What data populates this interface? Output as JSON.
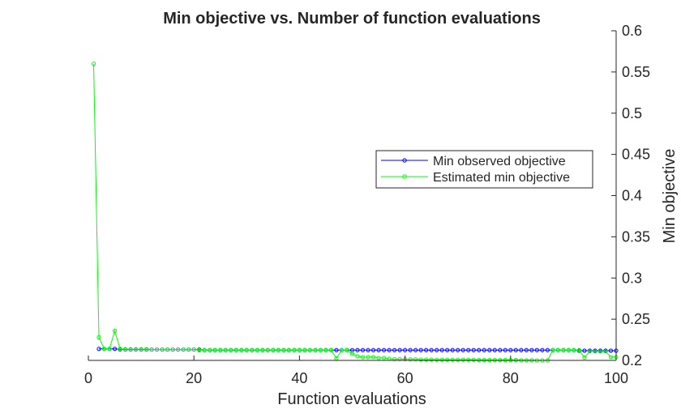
{
  "chart_data": {
    "type": "line",
    "title": "Min objective vs. Number of function evaluations",
    "xlabel": "Function evaluations",
    "ylabel": "Min objective",
    "xlim": [
      0,
      100
    ],
    "ylim": [
      0.2,
      0.6
    ],
    "xticks": [
      "0",
      "20",
      "40",
      "60",
      "80",
      "100"
    ],
    "yticks": [
      "0.2",
      "0.25",
      "0.3",
      "0.35",
      "0.4",
      "0.45",
      "0.5",
      "0.55",
      "0.6"
    ],
    "y_axis_location": "right",
    "grid": false,
    "legend_position": "center-right",
    "series": [
      {
        "name": "Min observed objective",
        "color": "#0000ff",
        "marker": "circle",
        "x": [
          2,
          3,
          4,
          5,
          6,
          7,
          8,
          9,
          10,
          11,
          12,
          13,
          14,
          15,
          16,
          17,
          18,
          19,
          20,
          21,
          22,
          23,
          24,
          25,
          26,
          27,
          28,
          29,
          30,
          31,
          32,
          33,
          34,
          35,
          36,
          37,
          38,
          39,
          40,
          41,
          42,
          43,
          44,
          45,
          46,
          47,
          48,
          49,
          50,
          51,
          52,
          53,
          54,
          55,
          56,
          57,
          58,
          59,
          60,
          61,
          62,
          63,
          64,
          65,
          66,
          67,
          68,
          69,
          70,
          71,
          72,
          73,
          74,
          75,
          76,
          77,
          78,
          79,
          80,
          81,
          82,
          83,
          84,
          85,
          86,
          87,
          88,
          89,
          90,
          91,
          92,
          93,
          94,
          95,
          96,
          97,
          98,
          99,
          100
        ],
        "y": [
          0.214,
          0.214,
          0.214,
          0.214,
          0.2134,
          0.2132,
          0.2132,
          0.2132,
          0.2132,
          0.2132,
          0.2132,
          0.2132,
          0.2132,
          0.2132,
          0.2132,
          0.2132,
          0.2132,
          0.2132,
          0.2132,
          0.2132,
          0.2125,
          0.2125,
          0.2125,
          0.2125,
          0.2125,
          0.2125,
          0.2125,
          0.2125,
          0.2125,
          0.2125,
          0.2125,
          0.2125,
          0.2125,
          0.2125,
          0.2125,
          0.2125,
          0.2125,
          0.2125,
          0.2125,
          0.2125,
          0.2125,
          0.2125,
          0.2125,
          0.2125,
          0.2125,
          0.2125,
          0.2125,
          0.2125,
          0.2125,
          0.2125,
          0.2125,
          0.2125,
          0.2125,
          0.2125,
          0.2125,
          0.2125,
          0.2125,
          0.2125,
          0.2125,
          0.2125,
          0.2125,
          0.2125,
          0.2125,
          0.2125,
          0.2125,
          0.2125,
          0.2125,
          0.2125,
          0.2125,
          0.2125,
          0.2125,
          0.2125,
          0.2125,
          0.2125,
          0.2125,
          0.2125,
          0.2125,
          0.2125,
          0.2125,
          0.2125,
          0.2125,
          0.2125,
          0.2125,
          0.2125,
          0.2125,
          0.2125,
          0.2125,
          0.2125,
          0.2125,
          0.2125,
          0.2125,
          0.2118,
          0.2118,
          0.2118,
          0.2118,
          0.2118,
          0.2118,
          0.2118,
          0.2118
        ]
      },
      {
        "name": "Estimated min objective",
        "color": "#00ff00",
        "marker": "circle",
        "x": [
          1,
          2,
          3,
          4,
          5,
          6,
          7,
          8,
          9,
          10,
          11,
          12,
          13,
          14,
          15,
          16,
          17,
          18,
          19,
          20,
          21,
          22,
          23,
          24,
          25,
          26,
          27,
          28,
          29,
          30,
          31,
          32,
          33,
          34,
          35,
          36,
          37,
          38,
          39,
          40,
          41,
          42,
          43,
          44,
          45,
          46,
          47,
          48,
          49,
          50,
          51,
          52,
          53,
          54,
          55,
          56,
          57,
          58,
          59,
          60,
          61,
          62,
          63,
          64,
          65,
          66,
          67,
          68,
          69,
          70,
          71,
          72,
          73,
          74,
          75,
          76,
          77,
          78,
          79,
          80,
          81,
          82,
          83,
          84,
          85,
          86,
          87,
          88,
          89,
          90,
          91,
          92,
          93,
          94,
          95,
          96,
          97,
          98,
          99,
          100
        ],
        "y": [
          0.56,
          0.228,
          0.214,
          0.214,
          0.236,
          0.214,
          0.2135,
          0.2135,
          0.2135,
          0.2135,
          0.2135,
          0.2133,
          0.2133,
          0.2133,
          0.2133,
          0.2133,
          0.2133,
          0.2133,
          0.2133,
          0.2133,
          0.2125,
          0.2125,
          0.2125,
          0.2125,
          0.2125,
          0.2125,
          0.2125,
          0.2125,
          0.2125,
          0.2125,
          0.2125,
          0.2125,
          0.2125,
          0.2125,
          0.2125,
          0.2125,
          0.2125,
          0.2125,
          0.2125,
          0.2125,
          0.2125,
          0.2125,
          0.2125,
          0.2125,
          0.2125,
          0.2125,
          0.2025,
          0.2125,
          0.2125,
          0.208,
          0.205,
          0.204,
          0.204,
          0.204,
          0.203,
          0.203,
          0.202,
          0.2015,
          0.2015,
          0.2015,
          0.2013,
          0.2013,
          0.201,
          0.201,
          0.201,
          0.2008,
          0.2008,
          0.2008,
          0.2008,
          0.2008,
          0.2008,
          0.2008,
          0.2008,
          0.2005,
          0.2005,
          0.2005,
          0.2005,
          0.2005,
          0.2005,
          0.2005,
          0.2005,
          0.2002,
          0.2002,
          0.2002,
          0.2,
          0.2,
          0.2,
          0.2125,
          0.2125,
          0.2125,
          0.2125,
          0.2125,
          0.2125,
          0.2035,
          0.211,
          0.211,
          0.211,
          0.211,
          0.204,
          0.204
        ]
      }
    ]
  }
}
